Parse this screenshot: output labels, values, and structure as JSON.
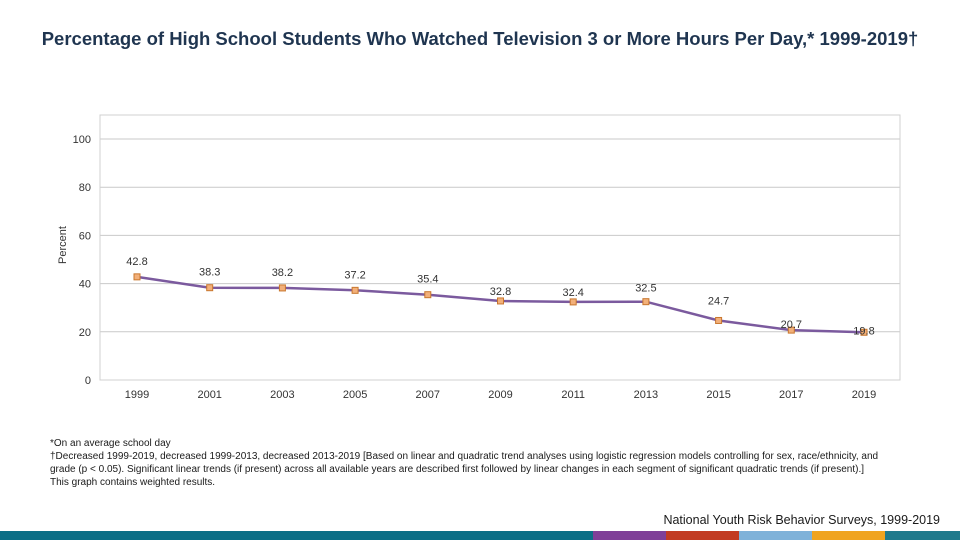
{
  "page": {
    "title": "Percentage of High School Students Who Watched Television 3 or More Hours Per Day,* 1999-2019†",
    "footnotes": [
      "*On an average school day",
      "†Decreased 1999-2019, decreased 1999-2013, decreased 2013-2019 [Based on linear and quadratic trend analyses using logistic regression models controlling for sex, race/ethnicity, and grade (p < 0.05). Significant linear trends (if present) across all available years are described first followed by linear changes in each segment of significant quadratic trends (if present).]",
      "This graph contains weighted results."
    ],
    "source": "National Youth Risk Behavior Surveys, 1999-2019"
  },
  "colors": {
    "line": "#7b5a9e",
    "marker_fill": "#f2b07a",
    "marker_stroke": "#c9772e",
    "grid": "#c9c9c9",
    "title": "#1f3550",
    "bottom_bar": [
      "#0b6e86",
      "#0b6e86",
      "#7f3f98",
      "#c23b22",
      "#7fb2d9",
      "#f0a420",
      "#1f7a8c"
    ]
  },
  "chart_data": {
    "type": "line",
    "title": "Percentage of High School Students Who Watched Television 3 or More Hours Per Day,* 1999-2019†",
    "xlabel": "",
    "ylabel": "Percent",
    "categories": [
      "1999",
      "2001",
      "2003",
      "2005",
      "2007",
      "2009",
      "2011",
      "2013",
      "2015",
      "2017",
      "2019"
    ],
    "series": [
      {
        "name": "Watched television 3 or more hours per day",
        "values": [
          42.8,
          38.3,
          38.2,
          37.2,
          35.4,
          32.8,
          32.4,
          32.5,
          24.7,
          20.7,
          19.8
        ]
      }
    ],
    "data_labels": [
      "42.8",
      "38.3",
      "38.2",
      "37.2",
      "35.4",
      "32.8",
      "32.4",
      "32.5",
      "24.7",
      "20.7",
      "19.8"
    ],
    "yticks": [
      0,
      20,
      40,
      60,
      80,
      100
    ],
    "ytick_labels": [
      "0",
      "20",
      "40",
      "60",
      "80",
      "100"
    ],
    "ylim": [
      0,
      100
    ],
    "grid": true,
    "legend": "none"
  }
}
